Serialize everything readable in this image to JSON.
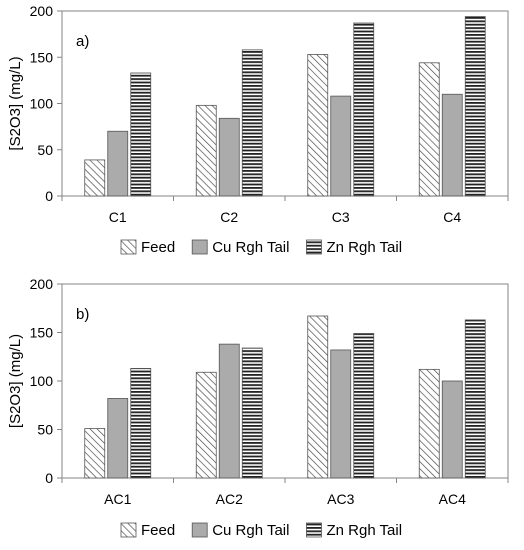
{
  "chart_data": [
    {
      "type": "bar",
      "panel_label": "a)",
      "ylabel": "[S2O3] (mg/L)",
      "ylim": [
        0,
        200
      ],
      "yticks": [
        0,
        50,
        100,
        150,
        200
      ],
      "categories": [
        "C1",
        "C2",
        "C3",
        "C4"
      ],
      "series": [
        {
          "name": "Feed",
          "pattern": "diagonal-hatch",
          "values": [
            39,
            98,
            153,
            144
          ]
        },
        {
          "name": "Cu Rgh Tail",
          "pattern": "solid-gray",
          "values": [
            70,
            84,
            108,
            110
          ]
        },
        {
          "name": "Zn Rgh Tail",
          "pattern": "horizontal-stripes",
          "values": [
            133,
            158,
            187,
            194
          ]
        }
      ],
      "legend_position": "bottom",
      "grid": false
    },
    {
      "type": "bar",
      "panel_label": "b)",
      "ylabel": "[S2O3] (mg/L)",
      "ylim": [
        0,
        200
      ],
      "yticks": [
        0,
        50,
        100,
        150,
        200
      ],
      "categories": [
        "AC1",
        "AC2",
        "AC3",
        "AC4"
      ],
      "series": [
        {
          "name": "Feed",
          "pattern": "diagonal-hatch",
          "values": [
            51,
            109,
            167,
            112
          ]
        },
        {
          "name": "Cu Rgh Tail",
          "pattern": "solid-gray",
          "values": [
            82,
            138,
            132,
            100
          ]
        },
        {
          "name": "Zn Rgh Tail",
          "pattern": "horizontal-stripes",
          "values": [
            113,
            134,
            149,
            163
          ]
        }
      ],
      "legend_position": "bottom",
      "grid": false
    }
  ],
  "colors": {
    "axis": "#868686",
    "bar_outline": "#555555",
    "solid_fill": "#ababab",
    "hatch_line": "#4d4d4d",
    "stripe_line": "#222222"
  }
}
